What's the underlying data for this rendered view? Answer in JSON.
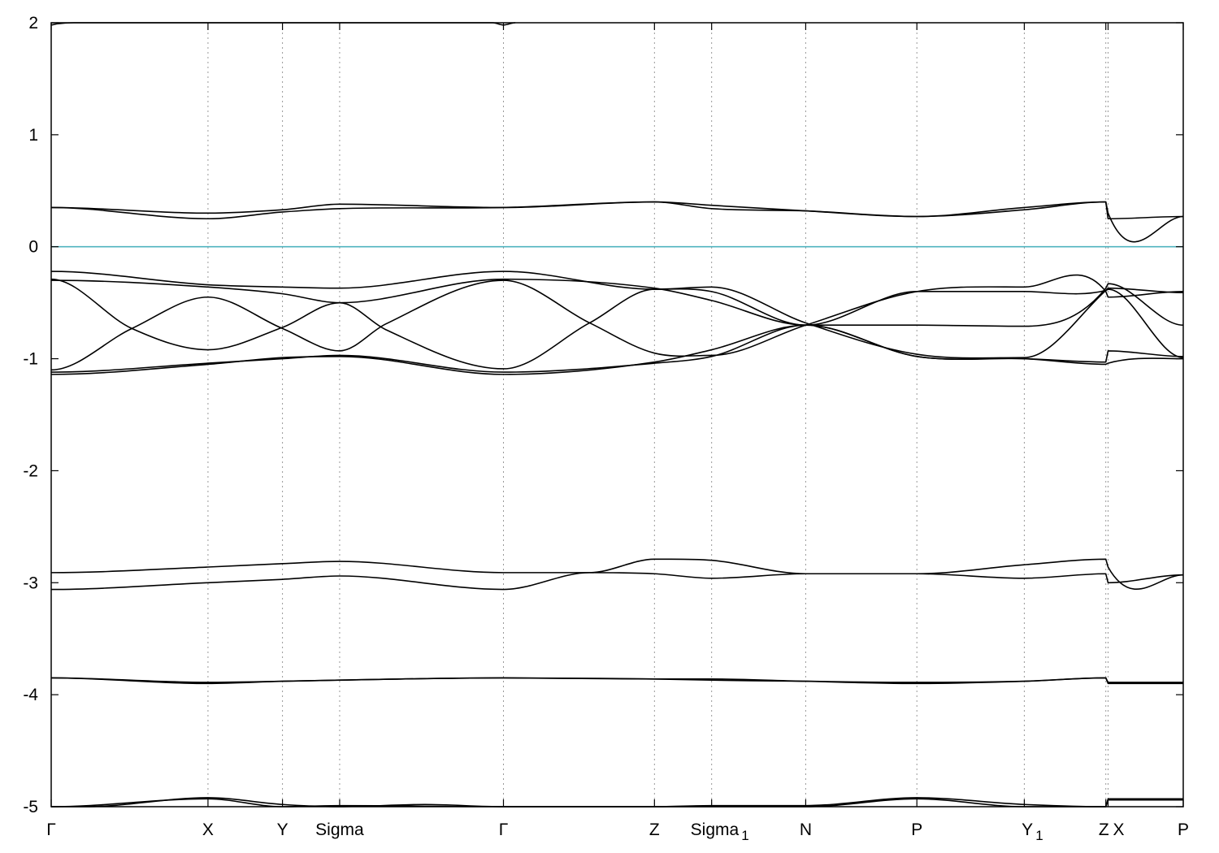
{
  "chart_data": {
    "type": "line",
    "title": "",
    "xlabel": "",
    "ylabel": "",
    "ylim": [
      -5,
      2
    ],
    "y_ticks": [
      2,
      1,
      0,
      -1,
      -2,
      -3,
      -4,
      -5
    ],
    "x_range": [
      0,
      1
    ],
    "x_ticks": [
      {
        "pos": 0.0,
        "label": "Γ",
        "sub": ""
      },
      {
        "pos": 0.1385,
        "label": "X",
        "sub": ""
      },
      {
        "pos": 0.2043,
        "label": "Y",
        "sub": ""
      },
      {
        "pos": 0.2548,
        "label": "Sigma",
        "sub": ""
      },
      {
        "pos": 0.3995,
        "label": "Γ",
        "sub": ""
      },
      {
        "pos": 0.5329,
        "label": "Z",
        "sub": ""
      },
      {
        "pos": 0.5834,
        "label": "Sigma",
        "sub": "1"
      },
      {
        "pos": 0.6665,
        "label": "N",
        "sub": ""
      },
      {
        "pos": 0.7647,
        "label": "P",
        "sub": ""
      },
      {
        "pos": 0.8596,
        "label": "Y",
        "sub": "1"
      },
      {
        "pos": 0.9316,
        "label": "Z",
        "sub": ""
      },
      {
        "pos": 0.9336,
        "label": "X",
        "sub": ""
      },
      {
        "pos": 1.0,
        "label": "P",
        "sub": ""
      }
    ],
    "grid": "vertical-dotted-at-symmetry-points",
    "reference_line": {
      "y": 0,
      "color": "#4fb3bf"
    },
    "line_color": "#000000",
    "series": [
      {
        "x": [
          0,
          0.03,
          0.1385,
          0.2043,
          0.2548,
          0.33,
          0.3995,
          0.5329,
          0.5834,
          0.6665,
          0.7647,
          0.8596,
          0.9316,
          0.9336,
          1.0
        ],
        "y": [
          -5.0,
          -5.0,
          -4.92,
          -4.98,
          -5.0,
          -4.98,
          -5.0,
          -5.0,
          -4.99,
          -4.99,
          -4.92,
          -4.98,
          -5.0,
          -4.93,
          -4.93
        ]
      },
      {
        "x": [
          0,
          0.1385,
          0.2043,
          0.2548,
          0.3995,
          0.5329,
          0.5834,
          0.6665,
          0.7647,
          0.8596,
          0.9316,
          0.9336,
          1.0
        ],
        "y": [
          -5.0,
          -4.93,
          -5.0,
          -4.99,
          -5.0,
          -5.0,
          -5.0,
          -5.0,
          -4.93,
          -5.0,
          -5.0,
          -4.94,
          -4.94
        ]
      },
      {
        "x": [
          0,
          0.1385,
          0.2043,
          0.2548,
          0.3995,
          0.5329,
          0.5834,
          0.6665,
          0.7647,
          0.8596,
          0.9316,
          0.9336,
          1.0
        ],
        "y": [
          -3.85,
          -3.9,
          -3.88,
          -3.87,
          -3.85,
          -3.86,
          -3.86,
          -3.88,
          -3.9,
          -3.88,
          -3.85,
          -3.9,
          -3.9
        ]
      },
      {
        "x": [
          0,
          0.1385,
          0.2043,
          0.2548,
          0.3995,
          0.5329,
          0.5834,
          0.6665,
          0.7647,
          0.8596,
          0.9316,
          0.9336,
          1.0
        ],
        "y": [
          -3.85,
          -3.89,
          -3.88,
          -3.87,
          -3.85,
          -3.86,
          -3.87,
          -3.88,
          -3.89,
          -3.88,
          -3.85,
          -3.89,
          -3.89
        ]
      },
      {
        "x": [
          0,
          0.1385,
          0.2043,
          0.2548,
          0.3995,
          0.4756,
          0.5329,
          0.5834,
          0.6665,
          0.7647,
          0.8596,
          0.9316,
          0.9336,
          1.0
        ],
        "y": [
          -2.91,
          -2.86,
          -2.83,
          -2.81,
          -2.91,
          -2.91,
          -2.79,
          -2.8,
          -2.92,
          -2.92,
          -2.84,
          -2.79,
          -2.86,
          -2.93
        ]
      },
      {
        "x": [
          0,
          0.1385,
          0.2043,
          0.2548,
          0.3995,
          0.4756,
          0.5329,
          0.5834,
          0.6665,
          0.7647,
          0.8596,
          0.9316,
          0.9336,
          1.0
        ],
        "y": [
          -3.06,
          -3.0,
          -2.97,
          -2.94,
          -3.06,
          -2.91,
          -2.92,
          -2.96,
          -2.92,
          -2.92,
          -2.96,
          -2.92,
          -3.0,
          -2.93
        ]
      },
      {
        "x": [
          0,
          0.1385,
          0.2043,
          0.2548,
          0.3995,
          0.5329,
          0.5834,
          0.6665,
          0.7647,
          0.8596,
          0.9316,
          0.9336,
          1.0
        ],
        "y": [
          -1.14,
          -1.05,
          -0.99,
          -0.98,
          -1.14,
          -1.03,
          -0.92,
          -0.7,
          -0.98,
          -1.0,
          -1.03,
          -0.93,
          -0.98
        ]
      },
      {
        "x": [
          0,
          0.1385,
          0.2043,
          0.2548,
          0.3995,
          0.5329,
          0.5834,
          0.6665,
          0.7647,
          0.8596,
          0.9316,
          0.9336,
          1.0
        ],
        "y": [
          -1.12,
          -1.04,
          -1.0,
          -0.97,
          -1.12,
          -1.04,
          -0.98,
          -0.7,
          -0.98,
          -1.0,
          -1.05,
          -1.04,
          -1.0
        ]
      },
      {
        "x": [
          0,
          0.0713,
          0.1385,
          0.2043,
          0.2548,
          0.2955,
          0.3995,
          0.4756,
          0.5329,
          0.5834,
          0.6665,
          0.7647,
          0.8596,
          0.9316,
          0.9336,
          1.0
        ],
        "y": [
          -0.29,
          -0.73,
          -0.92,
          -0.72,
          -0.5,
          -0.74,
          -1.09,
          -0.68,
          -0.38,
          -0.4,
          -0.7,
          -0.7,
          -0.71,
          -0.37,
          -0.33,
          -0.7
        ]
      },
      {
        "x": [
          0,
          0.0713,
          0.1385,
          0.2043,
          0.2548,
          0.2955,
          0.3995,
          0.4756,
          0.5329,
          0.5834,
          0.6665,
          0.7647,
          0.8596,
          0.9316,
          0.9336,
          1.0
        ],
        "y": [
          -1.1,
          -0.73,
          -0.45,
          -0.73,
          -0.93,
          -0.69,
          -0.3,
          -0.68,
          -0.95,
          -0.97,
          -0.7,
          -0.4,
          -0.36,
          -0.4,
          -0.45,
          -0.4
        ]
      },
      {
        "x": [
          0,
          0.1385,
          0.2043,
          0.2548,
          0.3995,
          0.5329,
          0.5834,
          0.6665,
          0.7647,
          0.8596,
          0.9316,
          0.9336,
          1.0
        ],
        "y": [
          -0.3,
          -0.36,
          -0.42,
          -0.5,
          -0.29,
          -0.37,
          -0.48,
          -0.7,
          -0.4,
          -0.4,
          -0.39,
          -0.38,
          -0.99
        ]
      },
      {
        "x": [
          0,
          0.1385,
          0.2043,
          0.2548,
          0.3995,
          0.5329,
          0.5834,
          0.6665,
          0.7647,
          0.8596,
          0.9316,
          0.9336,
          1.0
        ],
        "y": [
          -0.22,
          -0.34,
          -0.36,
          -0.37,
          -0.22,
          -0.38,
          -0.36,
          -0.68,
          -0.96,
          -0.99,
          -0.39,
          -0.37,
          -0.41
        ]
      },
      {
        "x": [
          0,
          0.1385,
          0.2043,
          0.2548,
          0.3995,
          0.5329,
          0.5834,
          0.6665,
          0.7647,
          0.8596,
          0.9316,
          0.9336,
          1.0
        ],
        "y": [
          0.35,
          0.3,
          0.33,
          0.38,
          0.35,
          0.4,
          0.37,
          0.32,
          0.27,
          0.35,
          0.4,
          0.3,
          0.27
        ]
      },
      {
        "x": [
          0,
          0.1385,
          0.2043,
          0.2548,
          0.3995,
          0.5329,
          0.5834,
          0.6665,
          0.7647,
          0.8596,
          0.9316,
          0.9336,
          1.0
        ],
        "y": [
          0.35,
          0.25,
          0.31,
          0.34,
          0.35,
          0.4,
          0.34,
          0.32,
          0.27,
          0.33,
          0.4,
          0.25,
          0.27
        ]
      },
      {
        "x": [
          0,
          0.005,
          0.02,
          0.39,
          0.3995,
          0.41
        ],
        "y": [
          1.98,
          1.99,
          2.0,
          2.0,
          1.98,
          2.0
        ]
      }
    ]
  }
}
